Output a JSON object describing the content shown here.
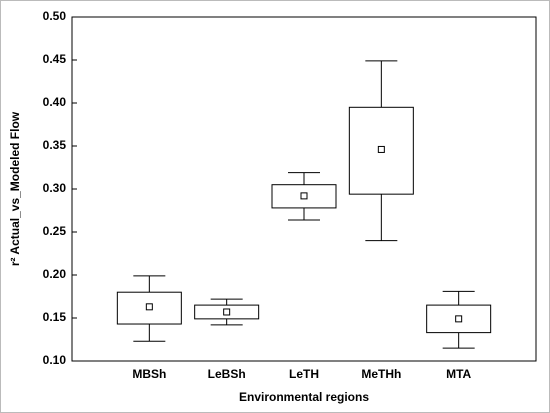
{
  "chart_data": {
    "type": "box",
    "xlabel": "Environmental regions",
    "ylabel": "r² Actual_vs_Modeled Flow",
    "categories": [
      "MBSh",
      "LeBSh",
      "LeTH",
      "MeTHh",
      "MTA"
    ],
    "whisker_high": [
      0.199,
      0.172,
      0.319,
      0.449,
      0.181
    ],
    "q3": [
      0.18,
      0.165,
      0.305,
      0.395,
      0.165
    ],
    "mean": [
      0.163,
      0.157,
      0.292,
      0.346,
      0.149
    ],
    "q1": [
      0.143,
      0.149,
      0.278,
      0.294,
      0.133
    ],
    "whisker_low": [
      0.123,
      0.142,
      0.264,
      0.24,
      0.115
    ],
    "color": "#000000",
    "ylim": [
      0.1,
      0.5
    ],
    "yticks": [
      {
        "value": 0.1,
        "label": "0.10"
      },
      {
        "value": 0.15,
        "label": "0.15"
      },
      {
        "value": 0.2,
        "label": "0.20"
      },
      {
        "value": 0.25,
        "label": "0.25"
      },
      {
        "value": 0.3,
        "label": "0.30"
      },
      {
        "value": 0.35,
        "label": "0.35"
      },
      {
        "value": 0.4,
        "label": "0.40"
      },
      {
        "value": 0.45,
        "label": "0.45"
      },
      {
        "value": 0.5,
        "label": "0.50"
      }
    ],
    "grid": false
  }
}
